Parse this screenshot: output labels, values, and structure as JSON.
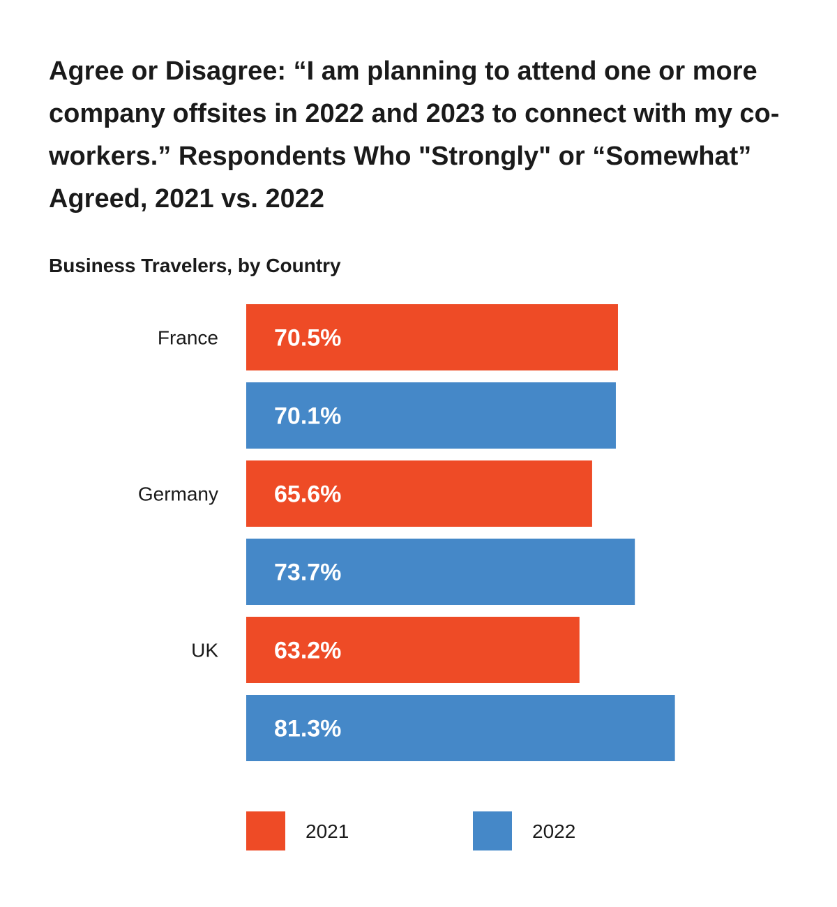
{
  "chart_data": {
    "type": "bar",
    "orientation": "horizontal",
    "title": "Agree or Disagree: “I am planning to attend one or more company offsites in 2022 and 2023 to connect with my co-workers.” Respondents Who \"Strongly\" or “Somewhat” Agreed, 2021 vs. 2022",
    "subtitle": "Business Travelers, by Country",
    "categories": [
      "France",
      "Germany",
      "UK"
    ],
    "series": [
      {
        "name": "2021",
        "color": "#ee4b26",
        "values": [
          70.5,
          65.6,
          63.2
        ]
      },
      {
        "name": "2022",
        "color": "#4588c8",
        "values": [
          70.1,
          73.7,
          81.3
        ]
      }
    ],
    "data_labels": [
      [
        "70.5%",
        "65.6%",
        "63.2%"
      ],
      [
        "70.1%",
        "73.7%",
        "81.3%"
      ]
    ],
    "xlim": [
      0,
      100
    ],
    "grid": false,
    "legend_position": "bottom"
  }
}
